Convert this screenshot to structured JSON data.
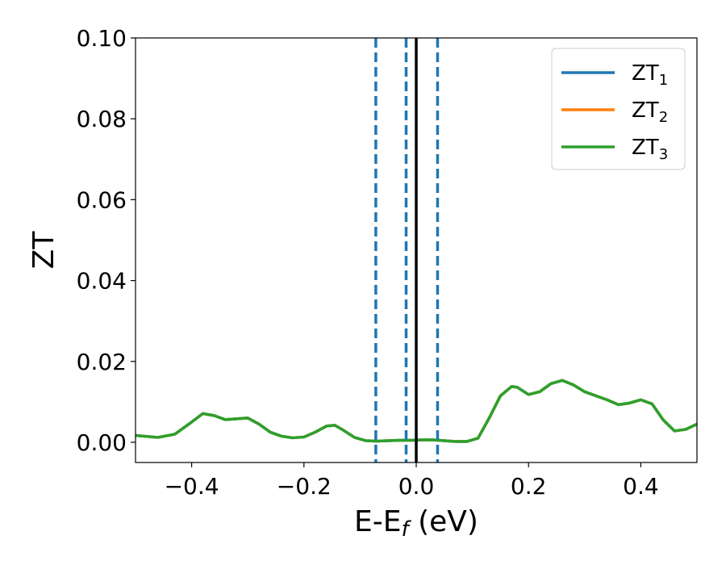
{
  "chart_data": {
    "type": "line",
    "xlabel": "E-E",
    "xlabel_sub": "f",
    "xlabel_unit": " (eV)",
    "ylabel": "ZT",
    "xlim": [
      -0.5,
      0.5
    ],
    "ylim": [
      -0.005,
      0.1
    ],
    "grid": false,
    "legend_position": "top-right",
    "x_ticks": [
      -0.4,
      -0.2,
      0.0,
      0.2,
      0.4
    ],
    "x_tick_labels": [
      "−0.4",
      "−0.2",
      "0.0",
      "0.2",
      "0.4"
    ],
    "y_ticks": [
      0.0,
      0.02,
      0.04,
      0.06,
      0.08,
      0.1
    ],
    "y_tick_labels": [
      "0.00",
      "0.02",
      "0.04",
      "0.06",
      "0.08",
      "0.10"
    ],
    "series": [
      {
        "name": "ZT",
        "name_sub": "1",
        "color": "#1f77b4",
        "x": [
          -0.5,
          -0.46,
          -0.43,
          -0.4,
          -0.38,
          -0.36,
          -0.34,
          -0.32,
          -0.3,
          -0.28,
          -0.26,
          -0.24,
          -0.22,
          -0.2,
          -0.18,
          -0.16,
          -0.145,
          -0.13,
          -0.11,
          -0.09,
          -0.07,
          -0.05,
          -0.03,
          -0.01,
          0.01,
          0.03,
          0.05,
          0.07,
          0.09,
          0.11,
          0.13,
          0.15,
          0.17,
          0.18,
          0.2,
          0.22,
          0.24,
          0.26,
          0.28,
          0.3,
          0.32,
          0.34,
          0.36,
          0.38,
          0.4,
          0.42,
          0.44,
          0.46,
          0.48,
          0.5
        ],
        "y": [
          0.0017,
          0.0012,
          0.002,
          0.005,
          0.0071,
          0.0066,
          0.0056,
          0.0058,
          0.006,
          0.0045,
          0.0025,
          0.0015,
          0.0011,
          0.0013,
          0.0025,
          0.004,
          0.0042,
          0.003,
          0.0012,
          0.0004,
          0.0003,
          0.0004,
          0.0005,
          0.0005,
          0.0006,
          0.0006,
          0.0004,
          0.0002,
          0.0002,
          0.001,
          0.006,
          0.0115,
          0.0138,
          0.0136,
          0.0118,
          0.0125,
          0.0145,
          0.0153,
          0.0142,
          0.0125,
          0.0115,
          0.0105,
          0.0093,
          0.0097,
          0.0105,
          0.0095,
          0.0055,
          0.0028,
          0.0032,
          0.0045
        ]
      },
      {
        "name": "ZT",
        "name_sub": "2",
        "color": "#ff7f0e",
        "x": [
          -0.5,
          -0.46,
          -0.43,
          -0.4,
          -0.38,
          -0.36,
          -0.34,
          -0.32,
          -0.3,
          -0.28,
          -0.26,
          -0.24,
          -0.22,
          -0.2,
          -0.18,
          -0.16,
          -0.145,
          -0.13,
          -0.11,
          -0.09,
          -0.07,
          -0.05,
          -0.03,
          -0.01,
          0.01,
          0.03,
          0.05,
          0.07,
          0.09,
          0.11,
          0.13,
          0.15,
          0.17,
          0.18,
          0.2,
          0.22,
          0.24,
          0.26,
          0.28,
          0.3,
          0.32,
          0.34,
          0.36,
          0.38,
          0.4,
          0.42,
          0.44,
          0.46,
          0.48,
          0.5
        ],
        "y": [
          0.0017,
          0.0012,
          0.002,
          0.005,
          0.0071,
          0.0066,
          0.0056,
          0.0058,
          0.006,
          0.0045,
          0.0025,
          0.0015,
          0.0011,
          0.0013,
          0.0025,
          0.004,
          0.0042,
          0.003,
          0.0012,
          0.0004,
          0.0003,
          0.0004,
          0.0005,
          0.0005,
          0.0006,
          0.0006,
          0.0004,
          0.0002,
          0.0002,
          0.001,
          0.006,
          0.0115,
          0.0138,
          0.0136,
          0.0118,
          0.0125,
          0.0145,
          0.0153,
          0.0142,
          0.0125,
          0.0115,
          0.0105,
          0.0093,
          0.0097,
          0.0105,
          0.0095,
          0.0055,
          0.0028,
          0.0032,
          0.0045
        ]
      },
      {
        "name": "ZT",
        "name_sub": "3",
        "color": "#2ca02c",
        "x": [
          -0.5,
          -0.46,
          -0.43,
          -0.4,
          -0.38,
          -0.36,
          -0.34,
          -0.32,
          -0.3,
          -0.28,
          -0.26,
          -0.24,
          -0.22,
          -0.2,
          -0.18,
          -0.16,
          -0.145,
          -0.13,
          -0.11,
          -0.09,
          -0.07,
          -0.05,
          -0.03,
          -0.01,
          0.01,
          0.03,
          0.05,
          0.07,
          0.09,
          0.11,
          0.13,
          0.15,
          0.17,
          0.18,
          0.2,
          0.22,
          0.24,
          0.26,
          0.28,
          0.3,
          0.32,
          0.34,
          0.36,
          0.38,
          0.4,
          0.42,
          0.44,
          0.46,
          0.48,
          0.5
        ],
        "y": [
          0.0017,
          0.0012,
          0.002,
          0.005,
          0.0071,
          0.0066,
          0.0056,
          0.0058,
          0.006,
          0.0045,
          0.0025,
          0.0015,
          0.0011,
          0.0013,
          0.0025,
          0.004,
          0.0042,
          0.003,
          0.0012,
          0.0004,
          0.0003,
          0.0004,
          0.0005,
          0.0005,
          0.0006,
          0.0006,
          0.0004,
          0.0002,
          0.0002,
          0.001,
          0.006,
          0.0115,
          0.0138,
          0.0136,
          0.0118,
          0.0125,
          0.0145,
          0.0153,
          0.0142,
          0.0125,
          0.0115,
          0.0105,
          0.0093,
          0.0097,
          0.0105,
          0.0095,
          0.0055,
          0.0028,
          0.0032,
          0.0045
        ]
      }
    ],
    "vertical_lines": [
      {
        "x": -0.072,
        "style": "dashed",
        "color": "#1f77b4"
      },
      {
        "x": -0.018,
        "style": "dashed",
        "color": "#1f77b4"
      },
      {
        "x": 0.038,
        "style": "dashed",
        "color": "#1f77b4"
      },
      {
        "x": 0.0,
        "style": "solid",
        "color": "#000000"
      }
    ]
  }
}
